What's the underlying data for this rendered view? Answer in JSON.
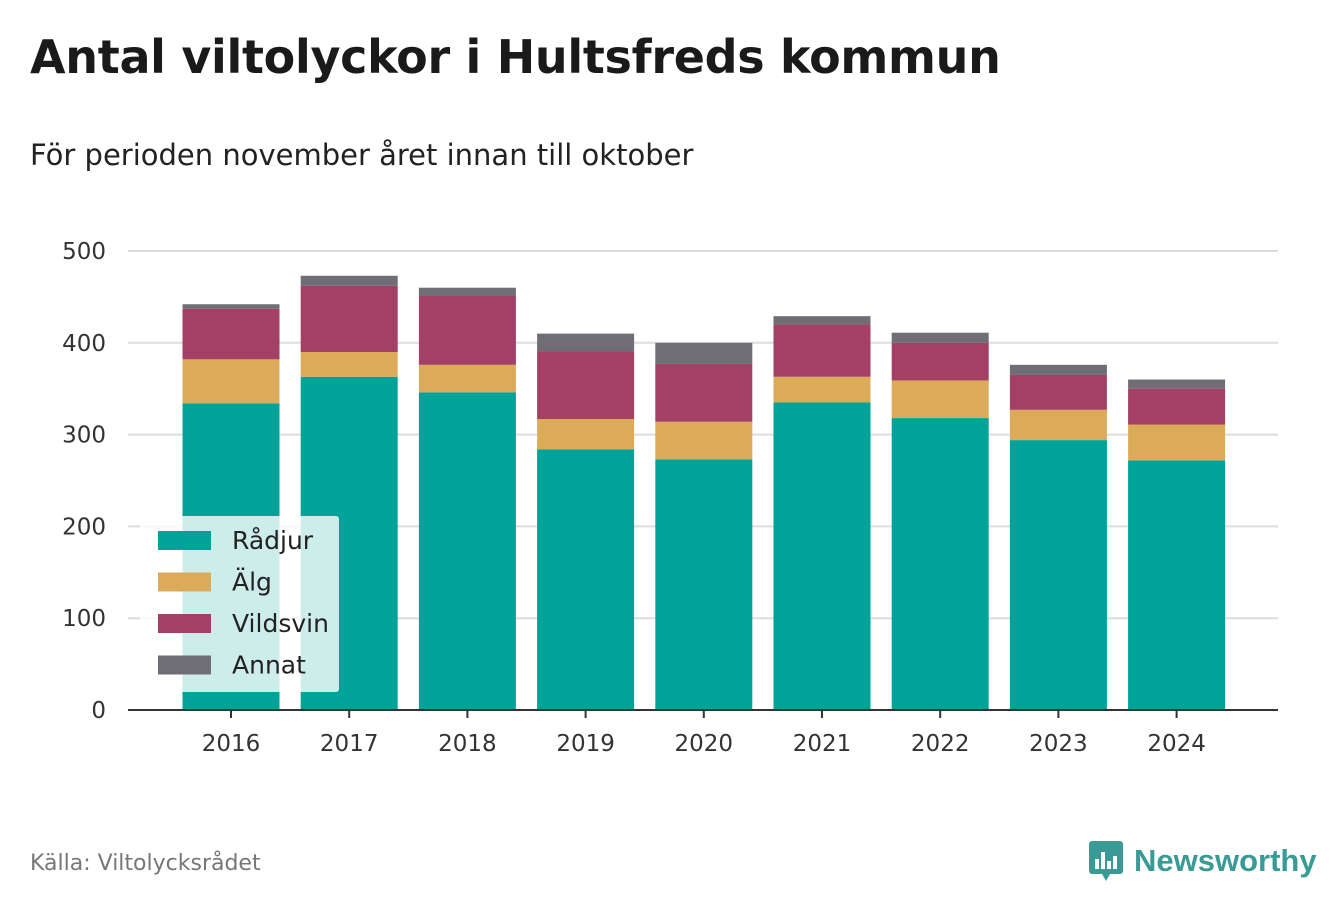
{
  "header": {
    "title": "Antal viltolyckor i Hultsfreds kommun",
    "subtitle": "För perioden november året innan till oktober"
  },
  "footer": {
    "source": "Källa: Viltolycksrådet",
    "brand": "Newsworthy",
    "brand_icon": "newsworthy-logo-icon"
  },
  "chart_data": {
    "type": "bar",
    "stacked": true,
    "title": "Antal viltolyckor i Hultsfreds kommun",
    "subtitle": "För perioden november året innan till oktober",
    "xlabel": "",
    "ylabel": "",
    "categories": [
      "2016",
      "2017",
      "2018",
      "2019",
      "2020",
      "2021",
      "2022",
      "2023",
      "2024"
    ],
    "series": [
      {
        "name": "Rådjur",
        "color": "#00a398",
        "values": [
          334,
          363,
          346,
          284,
          273,
          335,
          318,
          294,
          272
        ]
      },
      {
        "name": "Älg",
        "color": "#dbab5a",
        "values": [
          48,
          27,
          30,
          33,
          41,
          28,
          41,
          33,
          39
        ]
      },
      {
        "name": "Vildsvin",
        "color": "#a43f66",
        "values": [
          55,
          72,
          75,
          74,
          63,
          57,
          41,
          38,
          39
        ]
      },
      {
        "name": "Annat",
        "color": "#6e6e74",
        "values": [
          5,
          11,
          9,
          19,
          23,
          9,
          11,
          11,
          10
        ]
      }
    ],
    "ylim": [
      0,
      500
    ],
    "yticks": [
      0,
      100,
      200,
      300,
      400,
      500
    ],
    "grid": true,
    "legend_placement": "bottom-left"
  }
}
